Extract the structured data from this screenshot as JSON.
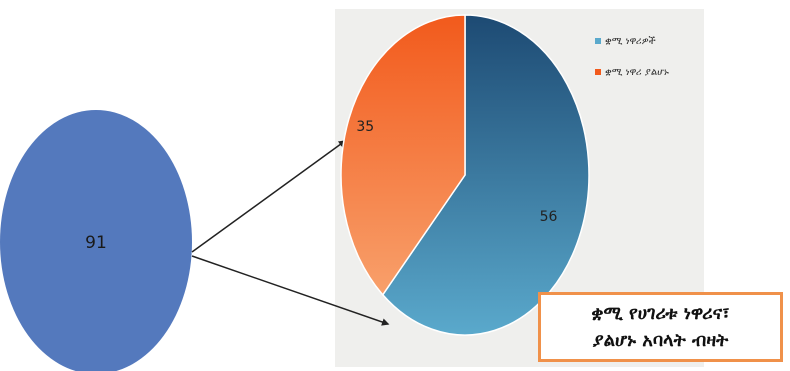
{
  "colors": {
    "total_circle": "#5479bd",
    "slice_a_dark": "#1d4a73",
    "slice_a_light": "#5aa9cc",
    "slice_b_dark": "#f25a1c",
    "slice_b_light": "#f8a06b",
    "panel_background": "#efefed",
    "caption_border": "#f0914a",
    "connector": "#222222"
  },
  "chart_data": [
    {
      "type": "pie",
      "title": "",
      "labels": [
        ""
      ],
      "values": [
        91
      ],
      "data_labels": [
        "91"
      ],
      "legend": "none"
    },
    {
      "type": "pie",
      "title": "",
      "labels": [
        "ቋሚ ነዋሪዎች",
        "ቋሚ ነዋሪ ያልሆኑ"
      ],
      "values": [
        56,
        35
      ],
      "data_labels": [
        "56",
        "35"
      ],
      "legend": "top-right",
      "start_angle_deg": 0,
      "direction": "clockwise"
    }
  ],
  "caption": {
    "line1": "ቋሚ የሀገሪቱ ነዋሪና፣",
    "line2": "ያልሆኑ አባላት ብዛት"
  }
}
